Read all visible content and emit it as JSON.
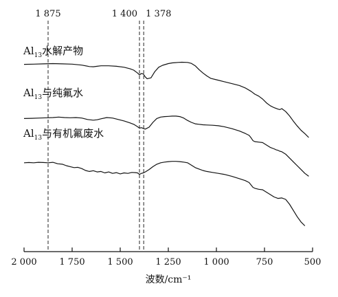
{
  "chart_data": {
    "type": "line",
    "title": "",
    "xlabel": "波数/cm⁻¹",
    "ylabel": "",
    "x_reversed": true,
    "xlim": [
      2000,
      500
    ],
    "xticks": [
      {
        "value": 2000,
        "label": "2 000"
      },
      {
        "value": 1750,
        "label": "1 750"
      },
      {
        "value": 1500,
        "label": "1 500"
      },
      {
        "value": 1250,
        "label": "1 250"
      },
      {
        "value": 1000,
        "label": "1 000"
      },
      {
        "value": 750,
        "label": "750"
      },
      {
        "value": 500,
        "label": "500"
      }
    ],
    "markers": [
      {
        "value": 1875,
        "label": "1 875"
      },
      {
        "value": 1400,
        "label": "1 400"
      },
      {
        "value": 1378,
        "label": "1 378"
      }
    ],
    "colors": {
      "line": "#111111",
      "marker": "#222222",
      "axis": "#111111"
    },
    "series": [
      {
        "name_prefix": "Al",
        "name_sub": "13",
        "name_suffix": "水解产物",
        "x": [
          2000,
          1950,
          1900,
          1850,
          1800,
          1750,
          1700,
          1660,
          1640,
          1620,
          1600,
          1560,
          1520,
          1480,
          1450,
          1430,
          1410,
          1400,
          1390,
          1380,
          1370,
          1360,
          1340,
          1320,
          1300,
          1280,
          1250,
          1230,
          1200,
          1180,
          1150,
          1130,
          1110,
          1090,
          1070,
          1050,
          1030,
          1000,
          960,
          920,
          880,
          850,
          820,
          800,
          780,
          760,
          740,
          720,
          700,
          680,
          670,
          660,
          640,
          620,
          600,
          580,
          560,
          540,
          520
        ],
        "y": [
          0.92,
          0.925,
          0.93,
          0.935,
          0.93,
          0.925,
          0.905,
          0.875,
          0.87,
          0.88,
          0.89,
          0.89,
          0.88,
          0.86,
          0.83,
          0.8,
          0.74,
          0.7,
          0.73,
          0.72,
          0.66,
          0.62,
          0.64,
          0.77,
          0.86,
          0.9,
          0.935,
          0.95,
          0.96,
          0.965,
          0.96,
          0.94,
          0.89,
          0.81,
          0.74,
          0.68,
          0.63,
          0.6,
          0.56,
          0.52,
          0.48,
          0.43,
          0.36,
          0.3,
          0.26,
          0.2,
          0.12,
          0.06,
          0.02,
          -0.01,
          -0.02,
          0.0,
          -0.06,
          -0.15,
          -0.26,
          -0.36,
          -0.45,
          -0.52,
          -0.6
        ]
      },
      {
        "name_prefix": "Al",
        "name_sub": "13",
        "name_suffix": "与纯氟水",
        "x": [
          2000,
          1960,
          1920,
          1880,
          1850,
          1820,
          1790,
          1760,
          1730,
          1700,
          1670,
          1640,
          1620,
          1600,
          1570,
          1540,
          1510,
          1480,
          1450,
          1430,
          1410,
          1400,
          1390,
          1378,
          1370,
          1350,
          1330,
          1310,
          1290,
          1270,
          1250,
          1230,
          1210,
          1190,
          1170,
          1150,
          1130,
          1110,
          1090,
          1070,
          1050,
          1020,
          990,
          960,
          920,
          880,
          850,
          830,
          820,
          810,
          800,
          780,
          760,
          740,
          720,
          700,
          690,
          680,
          670,
          660,
          640,
          620,
          600,
          580,
          560,
          540,
          520
        ],
        "y": [
          0.78,
          0.785,
          0.79,
          0.795,
          0.8,
          0.81,
          0.8,
          0.795,
          0.8,
          0.79,
          0.76,
          0.745,
          0.755,
          0.775,
          0.8,
          0.79,
          0.76,
          0.73,
          0.69,
          0.66,
          0.61,
          0.58,
          0.59,
          0.57,
          0.56,
          0.6,
          0.7,
          0.78,
          0.81,
          0.82,
          0.825,
          0.83,
          0.83,
          0.82,
          0.79,
          0.74,
          0.7,
          0.67,
          0.66,
          0.65,
          0.645,
          0.64,
          0.63,
          0.61,
          0.57,
          0.52,
          0.47,
          0.43,
          0.38,
          0.32,
          0.3,
          0.29,
          0.28,
          0.23,
          0.18,
          0.15,
          0.13,
          0.12,
          0.1,
          0.09,
          0.04,
          -0.04,
          -0.12,
          -0.2,
          -0.28,
          -0.36,
          -0.42
        ]
      },
      {
        "name_prefix": "Al",
        "name_sub": "13",
        "name_suffix": "与有机氟废水",
        "x": [
          2000,
          1975,
          1950,
          1925,
          1900,
          1875,
          1850,
          1825,
          1800,
          1780,
          1760,
          1740,
          1720,
          1700,
          1680,
          1660,
          1640,
          1620,
          1600,
          1580,
          1560,
          1540,
          1520,
          1500,
          1480,
          1460,
          1440,
          1420,
          1410,
          1400,
          1390,
          1380,
          1370,
          1350,
          1330,
          1310,
          1290,
          1270,
          1250,
          1230,
          1210,
          1190,
          1170,
          1150,
          1130,
          1110,
          1090,
          1070,
          1050,
          1020,
          990,
          960,
          920,
          880,
          850,
          830,
          820,
          810,
          800,
          780,
          760,
          740,
          720,
          700,
          680,
          660,
          640,
          620,
          600,
          580,
          560,
          540
        ],
        "y": [
          0.66,
          0.665,
          0.66,
          0.67,
          0.665,
          0.66,
          0.67,
          0.64,
          0.63,
          0.6,
          0.58,
          0.56,
          0.565,
          0.54,
          0.5,
          0.48,
          0.495,
          0.47,
          0.48,
          0.45,
          0.47,
          0.44,
          0.455,
          0.43,
          0.45,
          0.44,
          0.46,
          0.455,
          0.45,
          0.42,
          0.44,
          0.45,
          0.47,
          0.52,
          0.58,
          0.63,
          0.66,
          0.675,
          0.685,
          0.69,
          0.69,
          0.685,
          0.675,
          0.66,
          0.61,
          0.56,
          0.53,
          0.5,
          0.48,
          0.46,
          0.44,
          0.42,
          0.38,
          0.33,
          0.29,
          0.25,
          0.2,
          0.15,
          0.13,
          0.11,
          0.1,
          0.05,
          0.0,
          -0.05,
          -0.08,
          -0.07,
          -0.1,
          -0.2,
          -0.33,
          -0.46,
          -0.57,
          -0.65
        ]
      }
    ]
  }
}
